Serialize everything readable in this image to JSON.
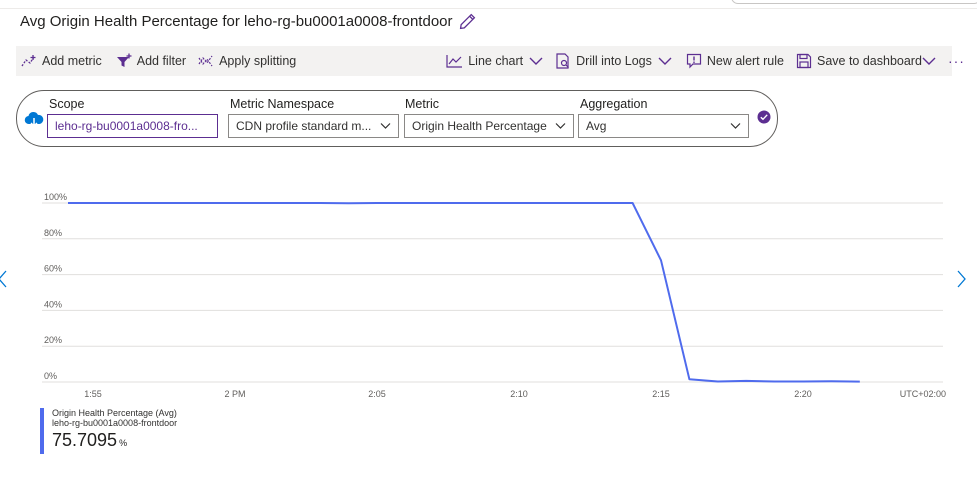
{
  "title": "Avg Origin Health Percentage for leho-rg-bu0001a0008-frontdoor",
  "toolbar": {
    "add_metric": "Add metric",
    "add_filter": "Add filter",
    "apply_splitting": "Apply splitting",
    "line_chart": "Line chart",
    "drill_into_logs": "Drill into Logs",
    "new_alert_rule": "New alert rule",
    "save_to_dashboard": "Save to dashboard",
    "more": "···"
  },
  "scope": {
    "scope_label": "Scope",
    "scope_value": "leho-rg-bu0001a0008-fro...",
    "namespace_label": "Metric Namespace",
    "namespace_value": "CDN profile standard m...",
    "metric_label": "Metric",
    "metric_value": "Origin Health Percentage",
    "aggregation_label": "Aggregation",
    "aggregation_value": "Avg"
  },
  "chart_data": {
    "type": "line",
    "y_ticks": [
      "100%",
      "80%",
      "60%",
      "40%",
      "20%",
      "0%"
    ],
    "x_ticks": [
      "1:55",
      "2 PM",
      "2:05",
      "2:10",
      "2:15",
      "2:20"
    ],
    "timezone": "UTC+02:00",
    "ylim": [
      0,
      100
    ],
    "series": [
      {
        "name": "Origin Health Percentage (Avg)",
        "color": "#4f6bed",
        "x_minutes": [
          -6.5,
          -6,
          -5,
          -4,
          -3,
          -2,
          -1,
          0,
          1,
          2,
          3,
          4,
          5,
          6,
          7,
          8,
          9,
          10,
          11,
          12,
          13,
          14,
          15,
          16,
          17,
          18,
          19,
          20,
          21,
          22
        ],
        "values": [
          100,
          100,
          100,
          100,
          100,
          100,
          100,
          100,
          100,
          100,
          100,
          99.9,
          100,
          100,
          100,
          100,
          100,
          100,
          100,
          100,
          100,
          100,
          68,
          1.5,
          0.3,
          0.6,
          0.3,
          0.3,
          0.4,
          0.2
        ]
      }
    ]
  },
  "legend": {
    "series_name": "Origin Health Percentage (Avg)",
    "resource": "leho-rg-bu0001a0008-frontdoor",
    "value": "75.7095",
    "unit": "%"
  },
  "colors": {
    "accent": "#4f6bed",
    "scope_border": "#5c2e91",
    "toolbar_icon": "#5c2e91"
  }
}
